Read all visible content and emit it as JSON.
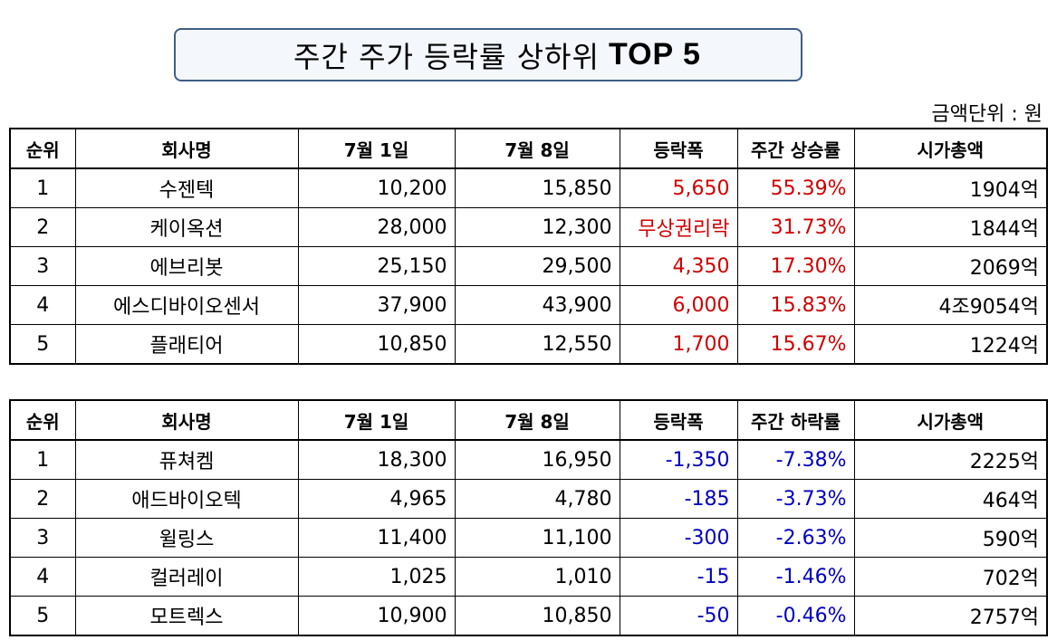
{
  "title": {
    "main": "주간 주가 등락률 상하위",
    "suffix": "TOP 5"
  },
  "unit_note": "금액단위 : 원",
  "colors": {
    "up": "#d00000",
    "down": "#0000c0",
    "title_border": "#3f5f86"
  },
  "gainers": {
    "headers": [
      "순위",
      "회사명",
      "7월 1일",
      "7월 8일",
      "등락폭",
      "주간 상승률",
      "시가총액"
    ],
    "rows": [
      [
        "1",
        "수젠텍",
        "10,200",
        "15,850",
        "5,650",
        "55.39%",
        "1904억"
      ],
      [
        "2",
        "케이옥션",
        "28,000",
        "12,300",
        "무상권리락",
        "31.73%",
        "1844억"
      ],
      [
        "3",
        "에브리봇",
        "25,150",
        "29,500",
        "4,350",
        "17.30%",
        "2069억"
      ],
      [
        "4",
        "에스디바이오센서",
        "37,900",
        "43,900",
        "6,000",
        "15.83%",
        "4조9054억"
      ],
      [
        "5",
        "플래티어",
        "10,850",
        "12,550",
        "1,700",
        "15.67%",
        "1224억"
      ]
    ]
  },
  "losers": {
    "headers": [
      "순위",
      "회사명",
      "7월 1일",
      "7월 8일",
      "등락폭",
      "주간 하락률",
      "시가총액"
    ],
    "rows": [
      [
        "1",
        "퓨쳐켐",
        "18,300",
        "16,950",
        "-1,350",
        "-7.38%",
        "2225억"
      ],
      [
        "2",
        "애드바이오텍",
        "4,965",
        "4,780",
        "-185",
        "-3.73%",
        "464억"
      ],
      [
        "3",
        "윌링스",
        "11,400",
        "11,100",
        "-300",
        "-2.63%",
        "590억"
      ],
      [
        "4",
        "컬러레이",
        "1,025",
        "1,010",
        "-15",
        "-1.46%",
        "702억"
      ],
      [
        "5",
        "모트렉스",
        "10,900",
        "10,850",
        "-50",
        "-0.46%",
        "2757억"
      ]
    ]
  }
}
